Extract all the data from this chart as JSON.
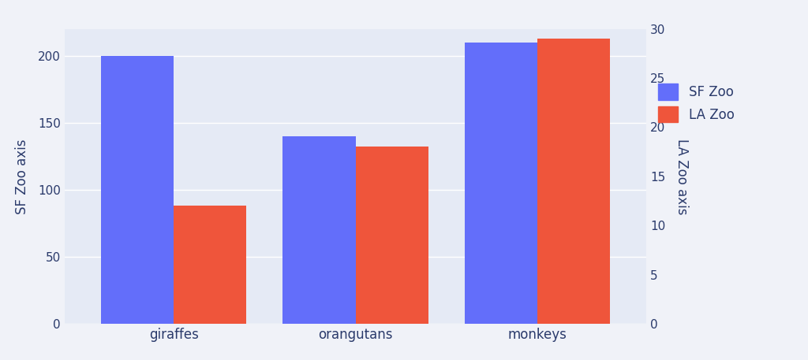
{
  "categories": [
    "giraffes",
    "orangutans",
    "monkeys"
  ],
  "sf_zoo": [
    200,
    140,
    210
  ],
  "la_zoo": [
    12,
    18,
    29
  ],
  "sf_color": "#636efa",
  "la_color": "#ef553b",
  "sf_label": "SF Zoo",
  "la_label": "LA Zoo",
  "sf_ylabel": "SF Zoo axis",
  "la_ylabel": "LA Zoo axis",
  "sf_ylim": [
    0,
    220
  ],
  "la_ylim": [
    0,
    30
  ],
  "tick_color": "#2a3a6b",
  "background_color": "#f0f2f8",
  "plot_bg_color": "#e5eaf5",
  "bar_width": 0.4,
  "legend_bg": "#ffffff"
}
